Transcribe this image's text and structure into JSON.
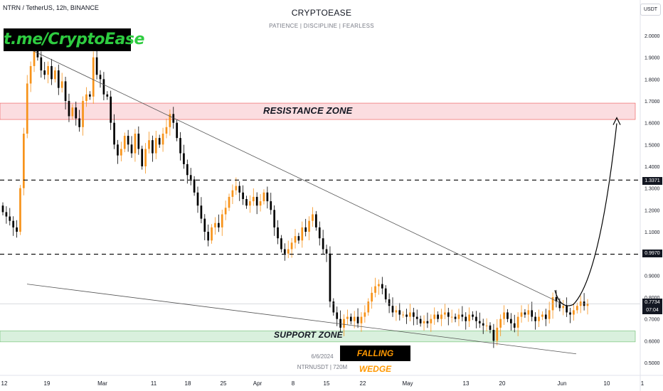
{
  "header": {
    "symbol_line": "NTRN / TetherUS, 12h, BINANCE",
    "center_title": "CRYPTOEASE",
    "center_subtitle": "PATIENCE  |  DISCIPLINE  |  FEARLESS",
    "unit_button": "USDT"
  },
  "annotations": {
    "brand": "t.me/CryptoEase",
    "resistance_label": "RESISTANCE ZONE",
    "support_label": "SUPPORT ZONE",
    "pattern_label": "FALLING WEDGE",
    "date_stamp": "6/6/2024",
    "volume_stamp": "NTRNUSDT | 720M"
  },
  "price_badges": {
    "upper_level": "1.3371",
    "lower_level": "0.9970",
    "last_price": "0.7734",
    "countdown": "07:04"
  },
  "colors": {
    "up": "#f7931a",
    "down": "#000000",
    "resistance_fill": "#fbdde0",
    "resistance_border": "#ef5350",
    "support_fill": "#d9f0dd",
    "support_border": "#66bb6a",
    "brand_text": "#2ecc40",
    "pattern_text": "#ff9800"
  },
  "chart_data": {
    "type": "candlestick",
    "y_axis": {
      "scale": "linear",
      "range": [
        0.47,
        2.04
      ],
      "ticks": [
        "2.0000",
        "1.9000",
        "1.8000",
        "1.7000",
        "1.6000",
        "1.5000",
        "1.4000",
        "1.3000",
        "1.2000",
        "1.1000",
        "0.9000",
        "0.8000",
        "0.7000",
        "0.6000",
        "0.5000"
      ]
    },
    "x_axis": {
      "ticks": [
        "12",
        "19",
        "Mar",
        "11",
        "18",
        "25",
        "Apr",
        "8",
        "15",
        "22",
        "May",
        "13",
        "20",
        "Jun",
        "10",
        "1"
      ]
    },
    "candles_approx_close": [
      1.19,
      1.17,
      1.15,
      1.12,
      1.1,
      1.3,
      1.55,
      1.78,
      1.86,
      1.93,
      1.9,
      1.84,
      1.82,
      1.86,
      1.8,
      1.84,
      1.76,
      1.79,
      1.7,
      1.63,
      1.67,
      1.62,
      1.58,
      1.7,
      1.73,
      1.72,
      1.9,
      1.82,
      1.8,
      1.73,
      1.72,
      1.6,
      1.5,
      1.45,
      1.48,
      1.54,
      1.5,
      1.46,
      1.55,
      1.48,
      1.4,
      1.48,
      1.52,
      1.46,
      1.53,
      1.5,
      1.55,
      1.58,
      1.64,
      1.6,
      1.53,
      1.46,
      1.41,
      1.36,
      1.34,
      1.28,
      1.22,
      1.16,
      1.1,
      1.06,
      1.12,
      1.14,
      1.12,
      1.18,
      1.21,
      1.26,
      1.29,
      1.31,
      1.28,
      1.25,
      1.22,
      1.24,
      1.26,
      1.22,
      1.24,
      1.28,
      1.24,
      1.2,
      1.12,
      1.07,
      1.02,
      1.0,
      1.02,
      1.05,
      1.08,
      1.06,
      1.12,
      1.1,
      1.15,
      1.18,
      1.12,
      1.07,
      1.02,
      1.0,
      0.78,
      0.73,
      0.7,
      0.66,
      0.7,
      0.71,
      0.69,
      0.71,
      0.68,
      0.71,
      0.73,
      0.78,
      0.82,
      0.85,
      0.86,
      0.84,
      0.79,
      0.76,
      0.73,
      0.74,
      0.72,
      0.72,
      0.71,
      0.73,
      0.71,
      0.7,
      0.68,
      0.69,
      0.68,
      0.7,
      0.72,
      0.7,
      0.72,
      0.73,
      0.71,
      0.71,
      0.7,
      0.72,
      0.71,
      0.69,
      0.72,
      0.71,
      0.69,
      0.68,
      0.67,
      0.67,
      0.65,
      0.6,
      0.66,
      0.7,
      0.73,
      0.7,
      0.68,
      0.66,
      0.71,
      0.73,
      0.72,
      0.74,
      0.71,
      0.69,
      0.71,
      0.72,
      0.7,
      0.74,
      0.8,
      0.78,
      0.75,
      0.76,
      0.73,
      0.72,
      0.74,
      0.76,
      0.78,
      0.76,
      0.77
    ],
    "levels": [
      {
        "label": "resistance zone",
        "range": [
          1.615,
          1.69
        ]
      },
      {
        "label": "horizontal level",
        "value": 1.3371
      },
      {
        "label": "horizontal level",
        "value": 0.997
      },
      {
        "label": "support zone",
        "range": [
          0.595,
          0.645
        ]
      }
    ],
    "trendlines": [
      {
        "from": [
          "19",
          1.94
        ],
        "to": [
          "Jun",
          0.77
        ]
      },
      {
        "from": [
          "12",
          0.86
        ],
        "to": [
          "Jun",
          0.54
        ]
      }
    ],
    "projection": {
      "from": 0.76,
      "to": 1.61,
      "style": "arrow"
    }
  }
}
